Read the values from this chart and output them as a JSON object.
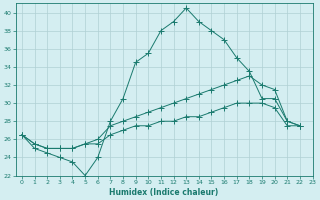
{
  "xlabel": "Humidex (Indice chaleur)",
  "ylabel": "",
  "xlim": [
    -0.5,
    23
  ],
  "ylim": [
    22,
    41
  ],
  "yticks": [
    22,
    24,
    26,
    28,
    30,
    32,
    34,
    36,
    38,
    40
  ],
  "xticks": [
    0,
    1,
    2,
    3,
    4,
    5,
    6,
    7,
    8,
    9,
    10,
    11,
    12,
    13,
    14,
    15,
    16,
    17,
    18,
    19,
    20,
    21,
    22,
    23
  ],
  "bg_color": "#d4eef1",
  "grid_color": "#b0d0d4",
  "line_color": "#1a7a6e",
  "line1": {
    "x": [
      0,
      1,
      2,
      3,
      4,
      5,
      6,
      7,
      8,
      9,
      10,
      11,
      12,
      13,
      14,
      15,
      16,
      17,
      18,
      19,
      20,
      21,
      22
    ],
    "y": [
      26.5,
      25.0,
      24.5,
      24.0,
      23.5,
      22.0,
      24.0,
      28.0,
      30.5,
      34.5,
      35.5,
      38.0,
      39.0,
      40.5,
      39.0,
      38.0,
      37.0,
      35.0,
      33.5,
      30.5,
      30.5,
      28.0,
      27.5
    ]
  },
  "line2": {
    "x": [
      0,
      1,
      2,
      3,
      4,
      5,
      6,
      7,
      8,
      9,
      10,
      11,
      12,
      13,
      14,
      15,
      16,
      17,
      18,
      19,
      20,
      21,
      22
    ],
    "y": [
      26.5,
      25.5,
      25.0,
      25.0,
      25.0,
      25.5,
      26.0,
      27.5,
      28.0,
      28.5,
      29.0,
      29.5,
      30.0,
      30.5,
      31.0,
      31.5,
      32.0,
      32.5,
      33.0,
      32.0,
      31.5,
      28.0,
      27.5
    ]
  },
  "line3": {
    "x": [
      0,
      1,
      2,
      3,
      4,
      5,
      6,
      7,
      8,
      9,
      10,
      11,
      12,
      13,
      14,
      15,
      16,
      17,
      18,
      19,
      20,
      21,
      22
    ],
    "y": [
      26.5,
      25.5,
      25.0,
      25.0,
      25.0,
      25.5,
      25.5,
      26.5,
      27.0,
      27.5,
      27.5,
      28.0,
      28.0,
      28.5,
      28.5,
      29.0,
      29.5,
      30.0,
      30.0,
      30.0,
      29.5,
      27.5,
      27.5
    ]
  },
  "figsize": [
    3.2,
    2.0
  ],
  "dpi": 100
}
